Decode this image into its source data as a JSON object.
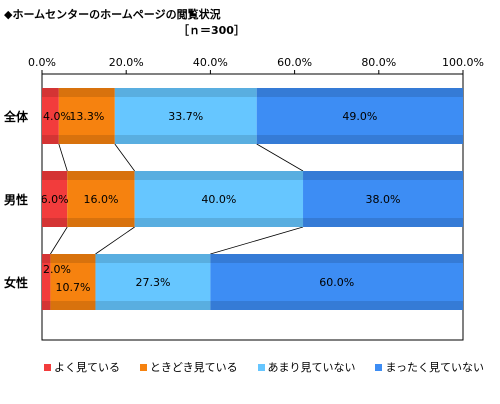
{
  "header": {
    "title": "◆ホームセンターのホームページの閲覧状況",
    "subtitle": "［ｎ＝300］"
  },
  "chart_data": {
    "type": "bar",
    "stacked": true,
    "orientation": "horizontal",
    "categories": [
      "全体",
      "男性",
      "女性"
    ],
    "series": [
      {
        "name": "よく見ている",
        "color": "#f23c3c",
        "values": [
          4.0,
          6.0,
          2.0
        ],
        "labels": [
          "4.0%",
          "6.0%",
          "2.0%"
        ]
      },
      {
        "name": "ときどき見ている",
        "color": "#f6820f",
        "values": [
          13.3,
          16.0,
          10.7
        ],
        "labels": [
          "13.3%",
          "16.0%",
          "10.7%"
        ]
      },
      {
        "name": "あまり見ていない",
        "color": "#66c6ff",
        "values": [
          33.7,
          40.0,
          27.3
        ],
        "labels": [
          "33.7%",
          "40.0%",
          "27.3%"
        ]
      },
      {
        "name": "まったく見ていない",
        "color": "#3d8df4",
        "values": [
          49.0,
          38.0,
          60.0
        ],
        "labels": [
          "49.0%",
          "38.0%",
          "60.0%"
        ]
      }
    ],
    "x_ticks": [
      "0.0%",
      "20.0%",
      "40.0%",
      "60.0%",
      "80.0%",
      "100.0%"
    ],
    "xlim": [
      0,
      100
    ],
    "legend_position": "bottom",
    "series_lines": true
  }
}
